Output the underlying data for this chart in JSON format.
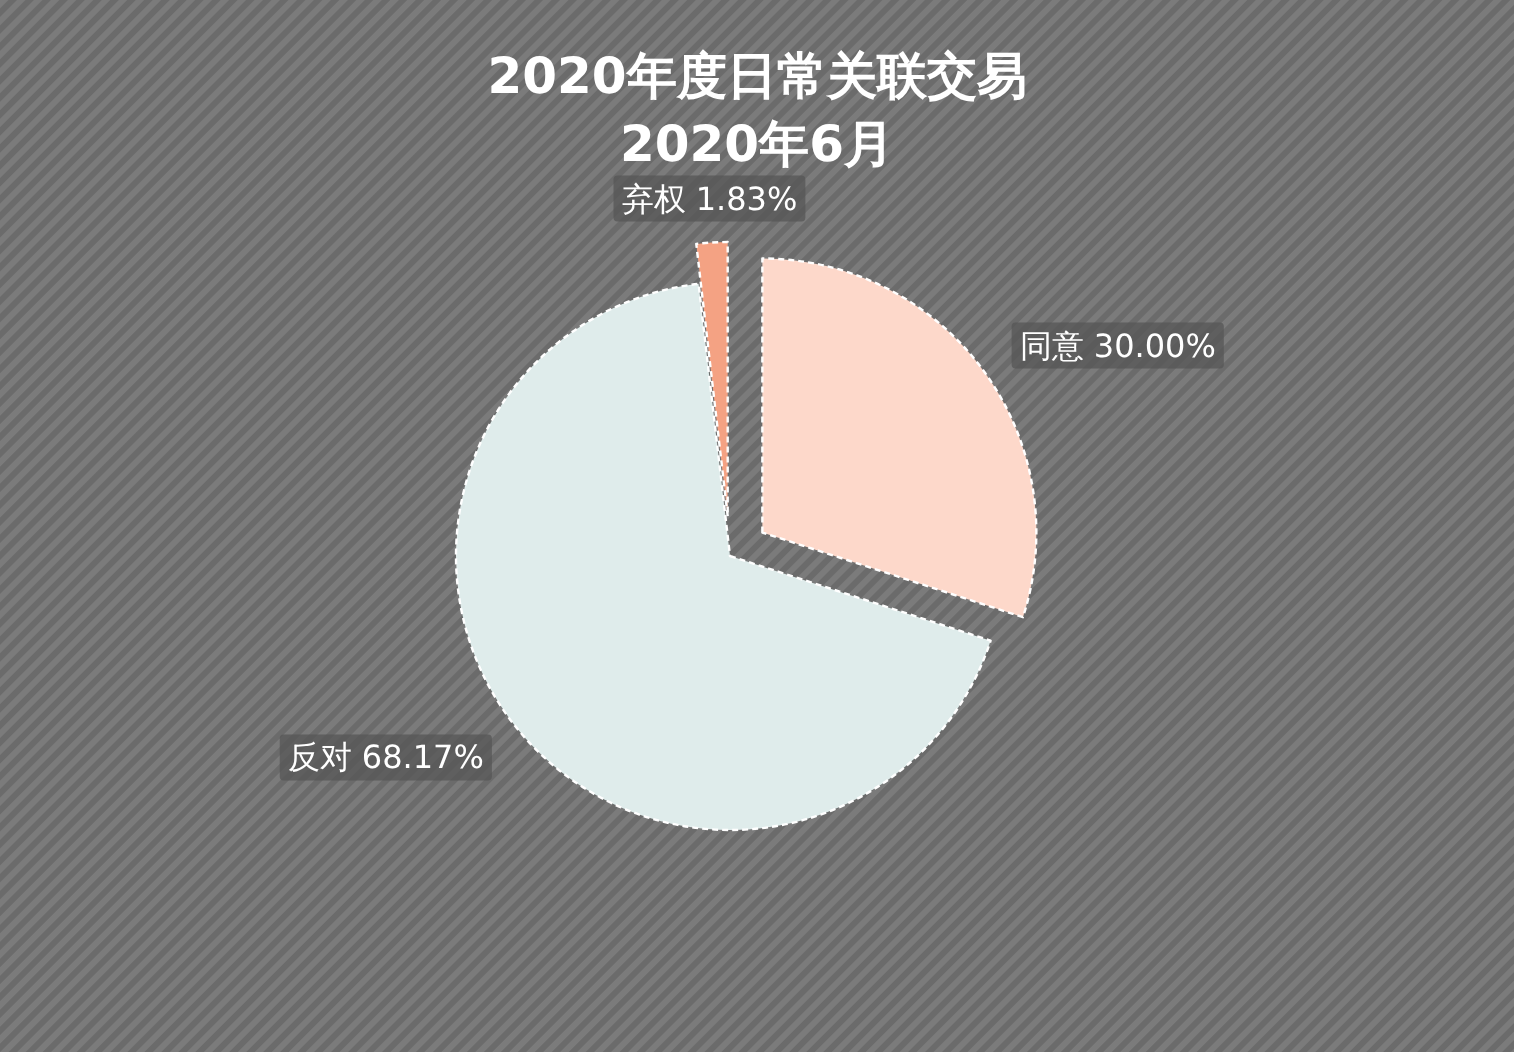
{
  "chart_data": {
    "type": "pie",
    "title": "2020年度日常关联交易",
    "subtitle": "2020年6月",
    "categories": [
      "同意",
      "反对",
      "弃权"
    ],
    "values": [
      30.0,
      68.17,
      1.83
    ],
    "colors": [
      "#fdd8ca",
      "#dfeceb",
      "#f4a283"
    ],
    "value_labels": [
      "30.00%",
      "68.17%",
      "1.83%"
    ]
  }
}
